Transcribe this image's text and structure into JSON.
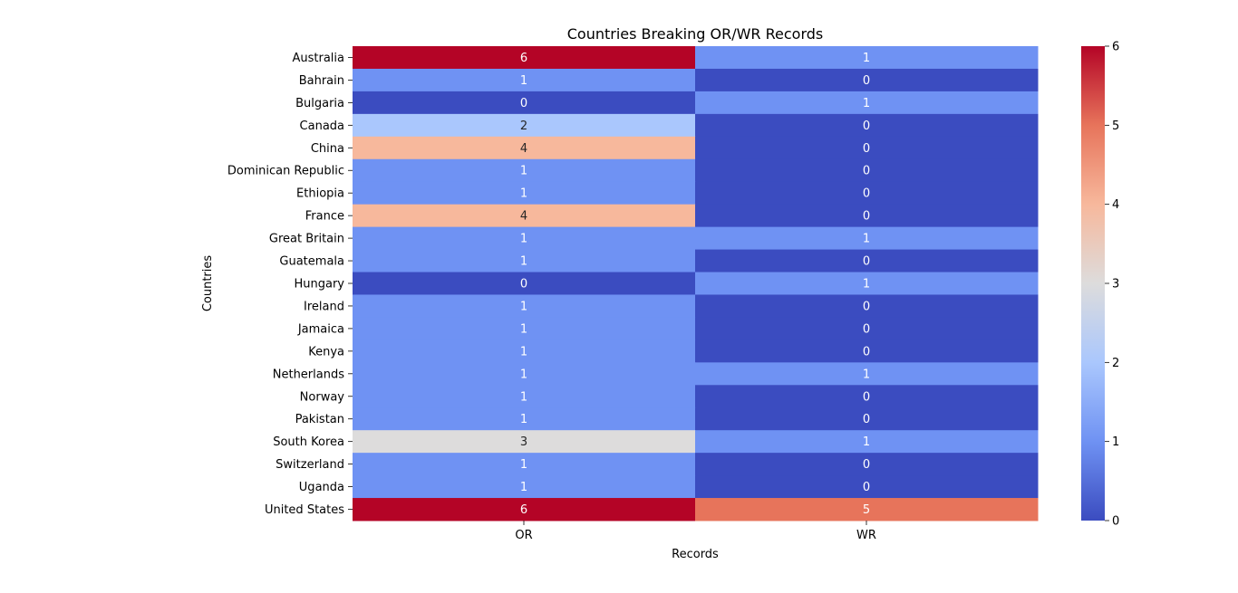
{
  "chart_data": {
    "type": "heatmap",
    "title": "Countries Breaking OR/WR Records",
    "xlabel": "Records",
    "ylabel": "Countries",
    "columns": [
      "OR",
      "WR"
    ],
    "rows": [
      "Australia",
      "Bahrain",
      "Bulgaria",
      "Canada",
      "China",
      "Dominican Republic",
      "Ethiopia",
      "France",
      "Great Britain",
      "Guatemala",
      "Hungary",
      "Ireland",
      "Jamaica",
      "Kenya",
      "Netherlands",
      "Norway",
      "Pakistan",
      "South Korea",
      "Switzerland",
      "Uganda",
      "United States"
    ],
    "values": [
      [
        6,
        1
      ],
      [
        1,
        0
      ],
      [
        0,
        1
      ],
      [
        2,
        0
      ],
      [
        4,
        0
      ],
      [
        1,
        0
      ],
      [
        1,
        0
      ],
      [
        4,
        0
      ],
      [
        1,
        1
      ],
      [
        1,
        0
      ],
      [
        0,
        1
      ],
      [
        1,
        0
      ],
      [
        1,
        0
      ],
      [
        1,
        0
      ],
      [
        1,
        1
      ],
      [
        1,
        0
      ],
      [
        1,
        0
      ],
      [
        3,
        1
      ],
      [
        1,
        0
      ],
      [
        1,
        0
      ],
      [
        6,
        5
      ]
    ],
    "colorbar": {
      "min": 0,
      "max": 6,
      "ticks": [
        0,
        1,
        2,
        3,
        4,
        5,
        6
      ],
      "colormap": "coolwarm",
      "colors": {
        "0": "#3b4cc0",
        "1": "#6f92f3",
        "2": "#aac7fd",
        "3": "#dddcdc",
        "4": "#f7b89c",
        "5": "#e7745b",
        "6": "#b40426"
      }
    }
  }
}
